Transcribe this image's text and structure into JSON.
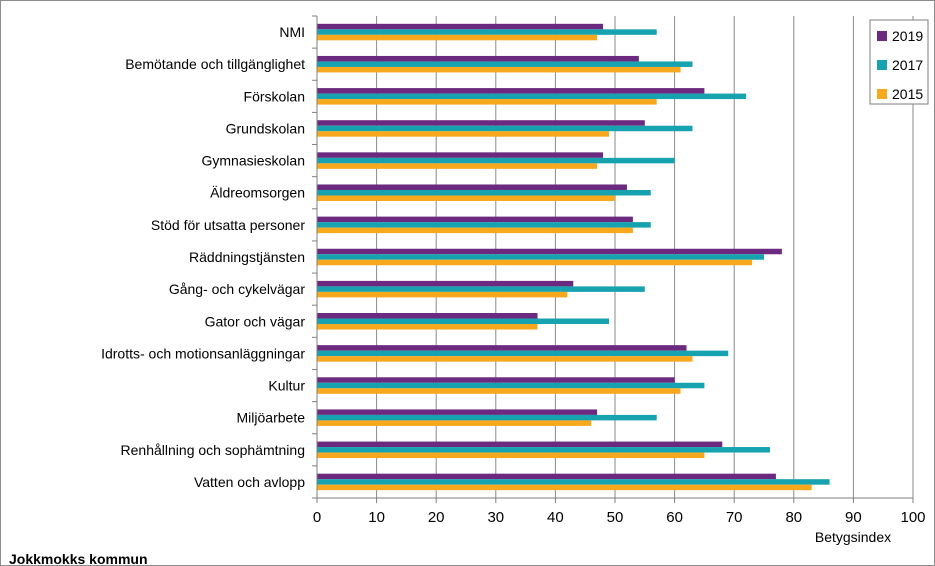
{
  "chart_data": {
    "type": "bar",
    "orientation": "horizontal",
    "footer": "Jokkmokks kommun",
    "xlabel": "Betygsindex",
    "xlim": [
      0,
      100
    ],
    "xticks": [
      "0",
      "10",
      "20",
      "30",
      "40",
      "50",
      "60",
      "70",
      "80",
      "90",
      "100"
    ],
    "grid": "vertical",
    "legend_position": "top-right",
    "categories": [
      "NMI",
      "Bemötande och tillgänglighet",
      "Förskolan",
      "Grundskolan",
      "Gymnasieskolan",
      "Äldreomsorgen",
      "Stöd för utsatta personer",
      "Räddningstjänsten",
      "Gång- och cykelvägar",
      "Gator och vägar",
      "Idrotts- och motionsanläggningar",
      "Kultur",
      "Miljöarbete",
      "Renhållning och sophämtning",
      "Vatten och avlopp"
    ],
    "series": [
      {
        "name": "2019",
        "color": "#6b2a7f",
        "values": [
          48,
          54,
          65,
          55,
          48,
          52,
          53,
          78,
          43,
          37,
          62,
          60,
          47,
          68,
          77
        ]
      },
      {
        "name": "2017",
        "color": "#17a2b0",
        "values": [
          57,
          63,
          72,
          63,
          60,
          56,
          56,
          75,
          55,
          49,
          69,
          65,
          57,
          76,
          86
        ]
      },
      {
        "name": "2015",
        "color": "#f7a81d",
        "values": [
          47,
          61,
          57,
          49,
          47,
          50,
          53,
          73,
          42,
          37,
          63,
          61,
          46,
          65,
          83
        ]
      }
    ]
  }
}
